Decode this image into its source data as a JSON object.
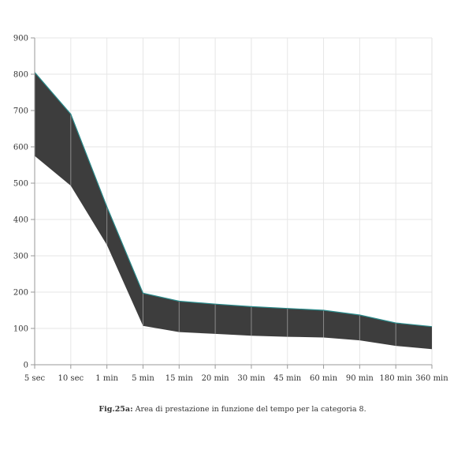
{
  "chart_data": {
    "type": "area",
    "title": "",
    "xlabel": "",
    "ylabel": "",
    "categories": [
      "5 sec",
      "10 sec",
      "1 min",
      "5 min",
      "15 min",
      "20 min",
      "30 min",
      "45 min",
      "60 min",
      "90 min",
      "180 min",
      "360 min"
    ],
    "series": [
      {
        "values": [
          805,
          690,
          435,
          197,
          175,
          167,
          160,
          155,
          150,
          137,
          115,
          105
        ]
      },
      {
        "values": [
          575,
          493,
          330,
          107,
          90,
          85,
          80,
          77,
          75,
          67,
          52,
          43
        ]
      }
    ],
    "ylim": [
      0,
      900
    ],
    "yticks": [
      0,
      100,
      200,
      300,
      400,
      500,
      600,
      700,
      800,
      900
    ],
    "grid": true,
    "fill_color": "#3d3d3d",
    "line_color": "#2a8a8a"
  },
  "caption": {
    "label": "Fig.25a:",
    "text": " Area di prestazione in funzione del tempo per la categoria 8."
  }
}
